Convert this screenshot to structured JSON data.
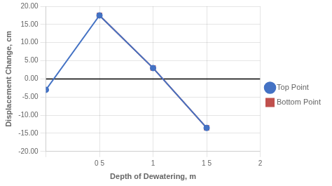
{
  "chart_data": {
    "type": "line",
    "xlabel": "Depth of Dewatering, m",
    "ylabel": "Displacement Change, cm",
    "series": [
      {
        "name": "Top Point",
        "color": "#4472C4",
        "marker": "circle",
        "x": [
          0,
          0.5,
          1,
          1.5
        ],
        "values": [
          -3.0,
          17.5,
          3.0,
          -13.5
        ]
      },
      {
        "name": "Bottom Point",
        "color": "#C0504D",
        "marker": "square",
        "x": [
          0.5,
          1,
          1.5
        ],
        "values": [
          17.5,
          3.0,
          -13.5
        ]
      }
    ],
    "zero_line": {
      "y": 0,
      "color": "#000000"
    },
    "xlim": [
      0,
      2
    ],
    "ylim": [
      -20,
      20
    ],
    "xticks": [
      {
        "value": 0,
        "label": null
      },
      {
        "value": 0.5,
        "label": "0 5"
      },
      1,
      {
        "value": 1.5,
        "label": "1 5"
      },
      2
    ],
    "yticks": [
      {
        "value": -20,
        "label": "-20.00"
      },
      {
        "value": -15,
        "label": "-15.00"
      },
      {
        "value": -10,
        "label": "-10.00"
      },
      {
        "value": -5,
        "label": "-5.00"
      },
      {
        "value": 0,
        "label": "0.00"
      },
      {
        "value": 5,
        "label": "5.00"
      },
      {
        "value": 10,
        "label": "10.00"
      },
      {
        "value": 15,
        "label": "15.00"
      },
      {
        "value": 20,
        "label": "20.00"
      }
    ],
    "grid": true,
    "legend": "right"
  }
}
